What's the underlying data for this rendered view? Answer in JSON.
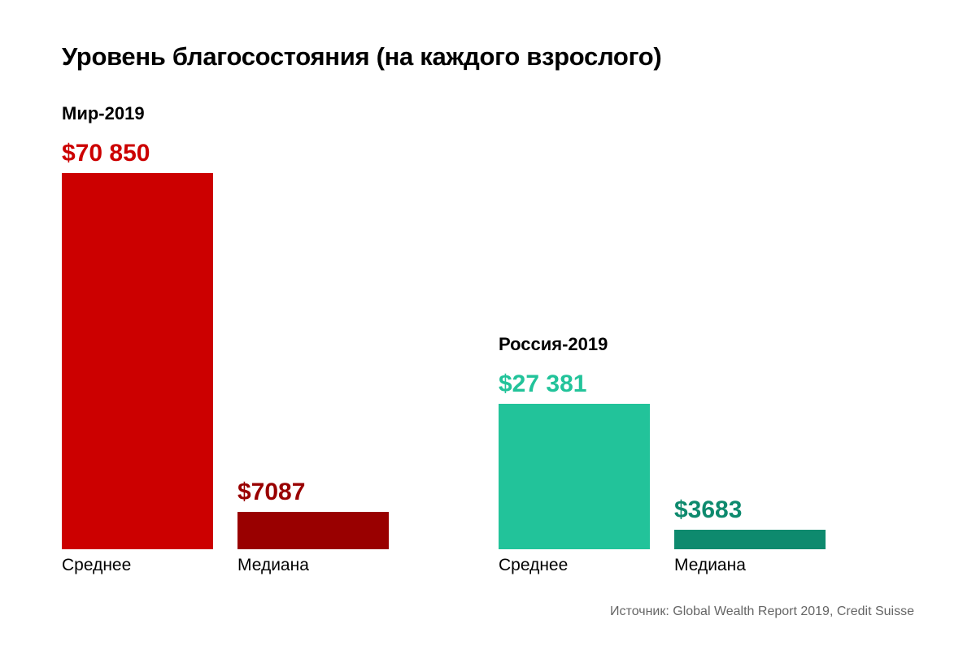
{
  "chart_data": {
    "type": "bar",
    "title": "Уровень благосостояния (на каждого взрослого)",
    "ylim": [
      0,
      70850
    ],
    "grid": false,
    "groups": [
      {
        "name": "Мир-2019",
        "bars": [
          {
            "category": "Среднее",
            "value": 70850,
            "label": "$70 850",
            "color": "#cc0000"
          },
          {
            "category": "Медиана",
            "value": 7087,
            "label": "$7087",
            "color": "#990000"
          }
        ]
      },
      {
        "name": "Россия-2019",
        "bars": [
          {
            "category": "Среднее",
            "value": 27381,
            "label": "$27 381",
            "color": "#22c39a"
          },
          {
            "category": "Медиана",
            "value": 3683,
            "label": "$3683",
            "color": "#0e8a6e"
          }
        ]
      }
    ],
    "source": "Источник: Global Wealth Report 2019, Credit Suisse"
  }
}
